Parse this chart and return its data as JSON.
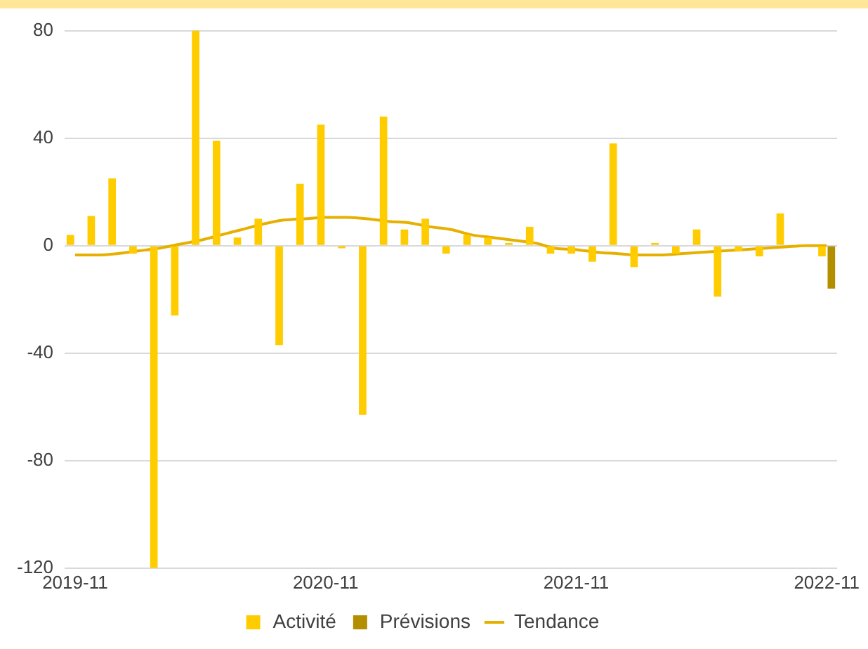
{
  "chart_data": {
    "type": "bar",
    "categories": [
      "2019-11",
      null,
      null,
      null,
      null,
      null,
      null,
      null,
      null,
      null,
      null,
      null,
      "2020-11",
      null,
      null,
      null,
      null,
      null,
      null,
      null,
      null,
      null,
      null,
      null,
      "2021-11",
      null,
      null,
      null,
      null,
      null,
      null,
      null,
      null,
      null,
      null,
      null,
      "2022-11"
    ],
    "series": [
      {
        "name": "Activité",
        "color": "#ffcc00",
        "values": [
          4,
          11,
          25,
          -3,
          -120,
          -26,
          80,
          39,
          3,
          10,
          -37,
          23,
          45,
          -1,
          -63,
          48,
          6,
          10,
          -3,
          4,
          3,
          1,
          7,
          -3,
          -3,
          -6,
          38,
          -8,
          1,
          -3,
          6,
          -19,
          -2,
          -4,
          12,
          0.5,
          -4
        ]
      },
      {
        "name": "Prévisions",
        "color": "#b38f00",
        "values": [
          null,
          null,
          null,
          null,
          null,
          null,
          null,
          null,
          null,
          null,
          null,
          null,
          null,
          null,
          null,
          null,
          null,
          null,
          null,
          null,
          null,
          null,
          null,
          null,
          null,
          null,
          null,
          null,
          null,
          null,
          null,
          null,
          null,
          null,
          null,
          null,
          -16
        ]
      },
      {
        "name": "Tendance",
        "type": "line",
        "color": "#e6b000",
        "values": [
          -3.5,
          -3.5,
          -3,
          -2,
          -1,
          0.5,
          2,
          4,
          6,
          8,
          9.5,
          10,
          10.5,
          10.5,
          10,
          9,
          8.5,
          7,
          6,
          4,
          3,
          2,
          1,
          -1,
          -1.5,
          -2.5,
          -3,
          -3.5,
          -3.5,
          -3,
          -2.5,
          -2,
          -1.5,
          -1,
          -0.5,
          0,
          0
        ]
      }
    ],
    "ylim": [
      -120,
      80
    ],
    "yticks": [
      -120,
      -80,
      -40,
      0,
      40,
      80
    ],
    "grid": "y",
    "legend": "bottom",
    "marker": "none"
  }
}
